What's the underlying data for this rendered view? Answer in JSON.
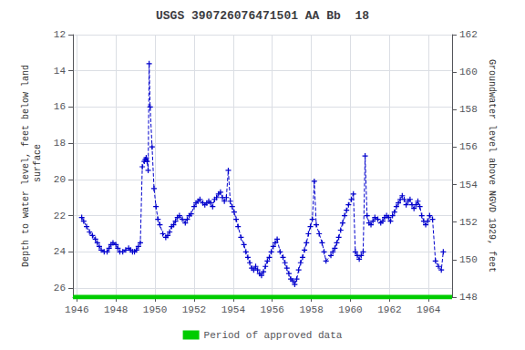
{
  "chart_data": {
    "type": "line",
    "title": "USGS 390726076471501 AA Bb  18",
    "ylabel": "Depth to water level, feet below land\n surface",
    "y2label": "Groundwater level above NGVD 1929, feet",
    "x": [
      1946.25,
      1946.35,
      1946.5,
      1946.65,
      1946.8,
      1946.95,
      1947.05,
      1947.15,
      1947.25,
      1947.4,
      1947.55,
      1947.65,
      1947.75,
      1947.85,
      1948.0,
      1948.1,
      1948.2,
      1948.35,
      1948.5,
      1948.65,
      1948.75,
      1948.85,
      1948.95,
      1949.05,
      1949.15,
      1949.25,
      1949.35,
      1949.45,
      1949.5,
      1949.55,
      1949.6,
      1949.65,
      1949.7,
      1949.75,
      1949.85,
      1949.95,
      1950.05,
      1950.15,
      1950.25,
      1950.4,
      1950.55,
      1950.65,
      1950.75,
      1950.85,
      1950.95,
      1951.05,
      1951.15,
      1951.25,
      1951.4,
      1951.55,
      1951.65,
      1951.75,
      1951.85,
      1952.0,
      1952.1,
      1952.2,
      1952.3,
      1952.45,
      1952.55,
      1952.65,
      1952.75,
      1952.85,
      1952.95,
      1953.05,
      1953.15,
      1953.25,
      1953.35,
      1953.45,
      1953.55,
      1953.65,
      1953.75,
      1953.85,
      1953.95,
      1954.05,
      1954.15,
      1954.25,
      1954.4,
      1954.55,
      1954.65,
      1954.75,
      1954.85,
      1954.95,
      1955.05,
      1955.15,
      1955.25,
      1955.35,
      1955.45,
      1955.55,
      1955.65,
      1955.75,
      1955.85,
      1955.95,
      1956.05,
      1956.15,
      1956.25,
      1956.4,
      1956.55,
      1956.65,
      1956.75,
      1956.85,
      1956.95,
      1957.05,
      1957.15,
      1957.25,
      1957.35,
      1957.45,
      1957.55,
      1957.65,
      1957.75,
      1957.85,
      1957.95,
      1958.05,
      1958.15,
      1958.25,
      1958.4,
      1958.55,
      1958.65,
      1958.75,
      1959.0,
      1959.1,
      1959.2,
      1959.3,
      1959.4,
      1959.5,
      1959.6,
      1959.7,
      1959.8,
      1959.9,
      1960.05,
      1960.15,
      1960.25,
      1960.35,
      1960.45,
      1960.55,
      1960.65,
      1960.75,
      1960.85,
      1960.95,
      1961.05,
      1961.15,
      1961.25,
      1961.4,
      1961.55,
      1961.65,
      1961.75,
      1961.85,
      1961.95,
      1962.05,
      1962.15,
      1962.25,
      1962.35,
      1962.45,
      1962.55,
      1962.65,
      1962.75,
      1962.85,
      1962.95,
      1963.05,
      1963.15,
      1963.25,
      1963.35,
      1963.45,
      1963.55,
      1963.65,
      1963.75,
      1963.85,
      1963.95,
      1964.05,
      1964.2,
      1964.35,
      1964.5,
      1964.65,
      1964.75
    ],
    "series": [
      {
        "color": "#0000CC",
        "marker": "plus",
        "line_style": "dashed",
        "values": [
          22.1,
          22.3,
          22.6,
          22.9,
          23.1,
          23.3,
          23.5,
          23.7,
          23.9,
          24.0,
          24.0,
          23.8,
          23.6,
          23.5,
          23.6,
          23.8,
          24.0,
          24.0,
          23.9,
          23.8,
          23.9,
          24.0,
          24.0,
          23.9,
          23.7,
          23.5,
          19.3,
          19.0,
          18.9,
          18.8,
          19.0,
          19.5,
          13.6,
          16.0,
          18.2,
          20.5,
          21.5,
          22.2,
          22.5,
          23.0,
          23.2,
          23.1,
          22.9,
          22.6,
          22.5,
          22.3,
          22.1,
          22.0,
          22.2,
          22.4,
          22.2,
          22.0,
          21.9,
          21.5,
          21.3,
          21.2,
          21.1,
          21.3,
          21.4,
          21.3,
          21.2,
          21.3,
          21.5,
          21.1,
          21.0,
          20.8,
          20.7,
          21.0,
          21.2,
          21.0,
          19.5,
          21.2,
          21.5,
          21.8,
          22.2,
          22.6,
          23.2,
          23.6,
          24.0,
          24.3,
          24.6,
          24.9,
          25.0,
          24.8,
          25.0,
          25.2,
          25.3,
          25.1,
          24.8,
          24.5,
          24.3,
          24.0,
          23.7,
          23.5,
          23.3,
          24.0,
          24.3,
          24.6,
          24.9,
          25.2,
          25.5,
          25.6,
          25.8,
          25.5,
          25.0,
          24.6,
          24.3,
          23.9,
          23.5,
          23.0,
          22.6,
          22.2,
          20.1,
          22.5,
          23.0,
          23.5,
          24.0,
          24.5,
          24.2,
          24.0,
          23.8,
          23.5,
          23.2,
          22.8,
          22.4,
          22.0,
          21.7,
          21.4,
          21.1,
          20.8,
          24.0,
          24.2,
          24.4,
          24.2,
          24.0,
          18.7,
          22.0,
          22.4,
          22.5,
          22.3,
          22.1,
          22.2,
          22.4,
          22.3,
          22.1,
          22.0,
          22.1,
          22.3,
          22.0,
          21.8,
          21.5,
          21.3,
          21.1,
          20.9,
          21.1,
          21.4,
          21.2,
          21.1,
          21.4,
          21.6,
          21.4,
          21.2,
          21.5,
          22.0,
          22.3,
          22.5,
          22.3,
          22.0,
          22.2,
          24.5,
          24.8,
          25.0,
          24.0
        ]
      },
      {
        "name": "Period of approved data",
        "color": "#00CC00",
        "line_style": "solid",
        "x": [
          1945.8,
          1965.2
        ],
        "values": [
          26.5,
          26.5
        ]
      }
    ],
    "xlim": [
      1945.8,
      1965.2
    ],
    "xticks": [
      1946,
      1948,
      1950,
      1952,
      1954,
      1956,
      1958,
      1960,
      1962,
      1964
    ],
    "ylim": [
      26.5,
      12.0
    ],
    "yticks": [
      12,
      14,
      16,
      18,
      20,
      22,
      24,
      26
    ],
    "y2lim": [
      148,
      162
    ],
    "y2ticks": [
      148,
      150,
      152,
      154,
      156,
      158,
      160,
      162
    ],
    "grid": true,
    "legend": "bottom"
  }
}
